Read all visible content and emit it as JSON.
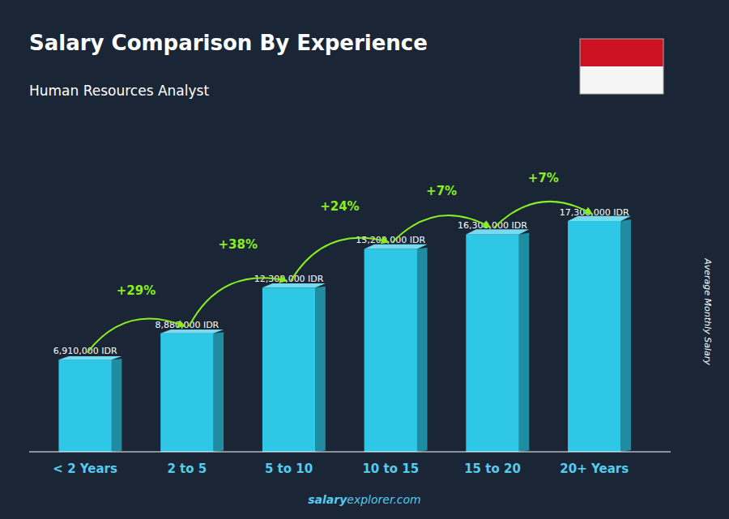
{
  "chart_data": {
    "type": "bar",
    "title": "Salary Comparison By Experience",
    "subtitle": "Human Resources Analyst",
    "ylabel": "Average Monthly Salary",
    "categories": [
      "< 2 Years",
      "2 to 5",
      "5 to 10",
      "10 to 15",
      "15 to 20",
      "20+ Years"
    ],
    "values": [
      6910000,
      8880000,
      12300000,
      15200000,
      16300000,
      17300000
    ],
    "value_labels": [
      "6,910,000 IDR",
      "8,880,000 IDR",
      "12,300,000 IDR",
      "15,200,000 IDR",
      "16,300,000 IDR",
      "17,300,000 IDR"
    ],
    "data_labels": true,
    "annotations": [
      "+29%",
      "+38%",
      "+24%",
      "+7%",
      "+7%"
    ],
    "color": "#2ec8e6",
    "ylim": [
      0,
      21000000
    ],
    "tick_labels": "x",
    "grid": false,
    "footer": [
      "salary",
      "explorer.com"
    ]
  }
}
